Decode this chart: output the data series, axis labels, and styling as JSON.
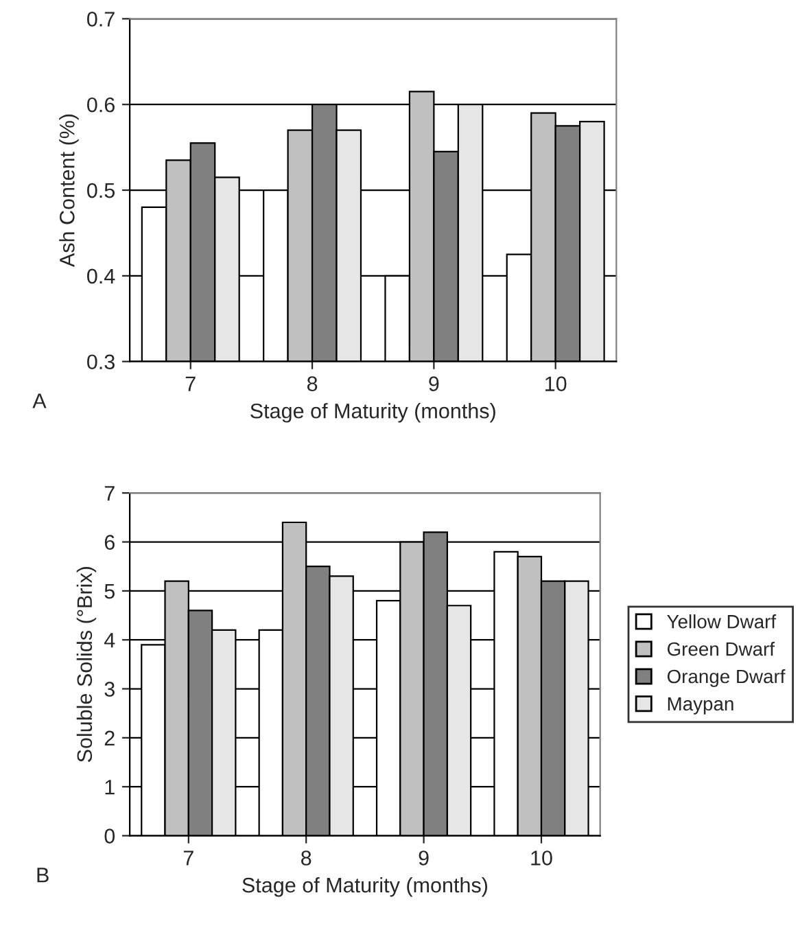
{
  "chart_data": [
    {
      "type": "bar",
      "xlabel": "Stage of Maturity (months)",
      "ylabel": "Ash Content (%)",
      "categories": [
        "7",
        "8",
        "9",
        "10"
      ],
      "series": [
        {
          "color": "#ffffff",
          "values": [
            0.48,
            0.5,
            0.4,
            0.425
          ]
        },
        {
          "color": "#c0c0c0",
          "values": [
            0.535,
            0.57,
            0.615,
            0.59
          ]
        },
        {
          "color": "#808080",
          "values": [
            0.555,
            0.6,
            0.545,
            0.575
          ]
        },
        {
          "color": "#e6e6e6",
          "values": [
            0.515,
            0.57,
            0.6,
            0.58
          ]
        }
      ],
      "ylim": [
        0.3,
        0.7
      ],
      "yticks": [
        0.3,
        0.4,
        0.5,
        0.6,
        0.7
      ],
      "grid": "y",
      "annotations": [
        "A"
      ]
    },
    {
      "type": "bar",
      "xlabel": "Stage of Maturity (months)",
      "ylabel": "Soluble Solids (°Brix)",
      "categories": [
        "7",
        "8",
        "9",
        "10"
      ],
      "series": [
        {
          "name": "Yellow Dwarf",
          "color": "#ffffff",
          "values": [
            3.9,
            4.2,
            4.8,
            5.8
          ]
        },
        {
          "name": "Green Dwarf",
          "color": "#c0c0c0",
          "values": [
            5.2,
            6.4,
            6.0,
            5.7
          ]
        },
        {
          "name": "Orange Dwarf",
          "color": "#808080",
          "values": [
            4.6,
            5.5,
            6.2,
            5.2
          ]
        },
        {
          "name": "Maypan",
          "color": "#e6e6e6",
          "values": [
            4.2,
            5.3,
            4.7,
            5.2
          ]
        }
      ],
      "ylim": [
        0,
        7
      ],
      "yticks": [
        0,
        1,
        2,
        3,
        4,
        5,
        6,
        7
      ],
      "grid": "y",
      "legend": "right",
      "annotations": [
        "B"
      ]
    }
  ]
}
